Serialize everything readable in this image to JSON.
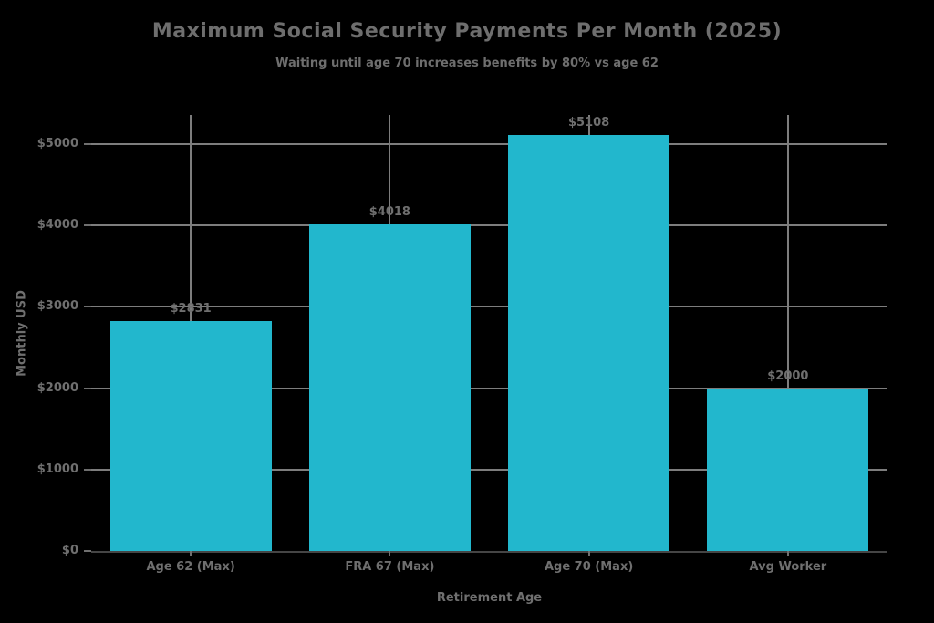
{
  "figure": {
    "title": "Maximum Social Security Payments Per Month (2025)",
    "subtitle": "Waiting until age 70 increases benefits by 80% vs age 62"
  },
  "chart_data": {
    "type": "bar",
    "title": "Maximum Social Security Payments Per Month (2025)",
    "subtitle": "Waiting until age 70 increases benefits by 80% vs age 62",
    "xlabel": "Retirement Age",
    "ylabel": "Monthly USD",
    "categories": [
      "Age 62 (Max)",
      "FRA 67 (Max)",
      "Age 70 (Max)",
      "Avg Worker"
    ],
    "values": [
      2831,
      4018,
      5108,
      2000
    ],
    "data_labels": [
      "$2831",
      "$4018",
      "$5108",
      "$2000"
    ],
    "yticks": {
      "values": [
        0,
        1000,
        2000,
        3000,
        4000,
        5000
      ],
      "labels": [
        "$0",
        "$1000",
        "$2000",
        "$3000",
        "$4000",
        "$5000"
      ]
    },
    "ylim": [
      0,
      5360
    ],
    "grid": true,
    "legend": "none",
    "colors": {
      "bar": "#22b7cd",
      "grid": "#7d7d7d",
      "axis_line": "#454545",
      "text": "#6f6f6f",
      "background": "#000000"
    }
  }
}
